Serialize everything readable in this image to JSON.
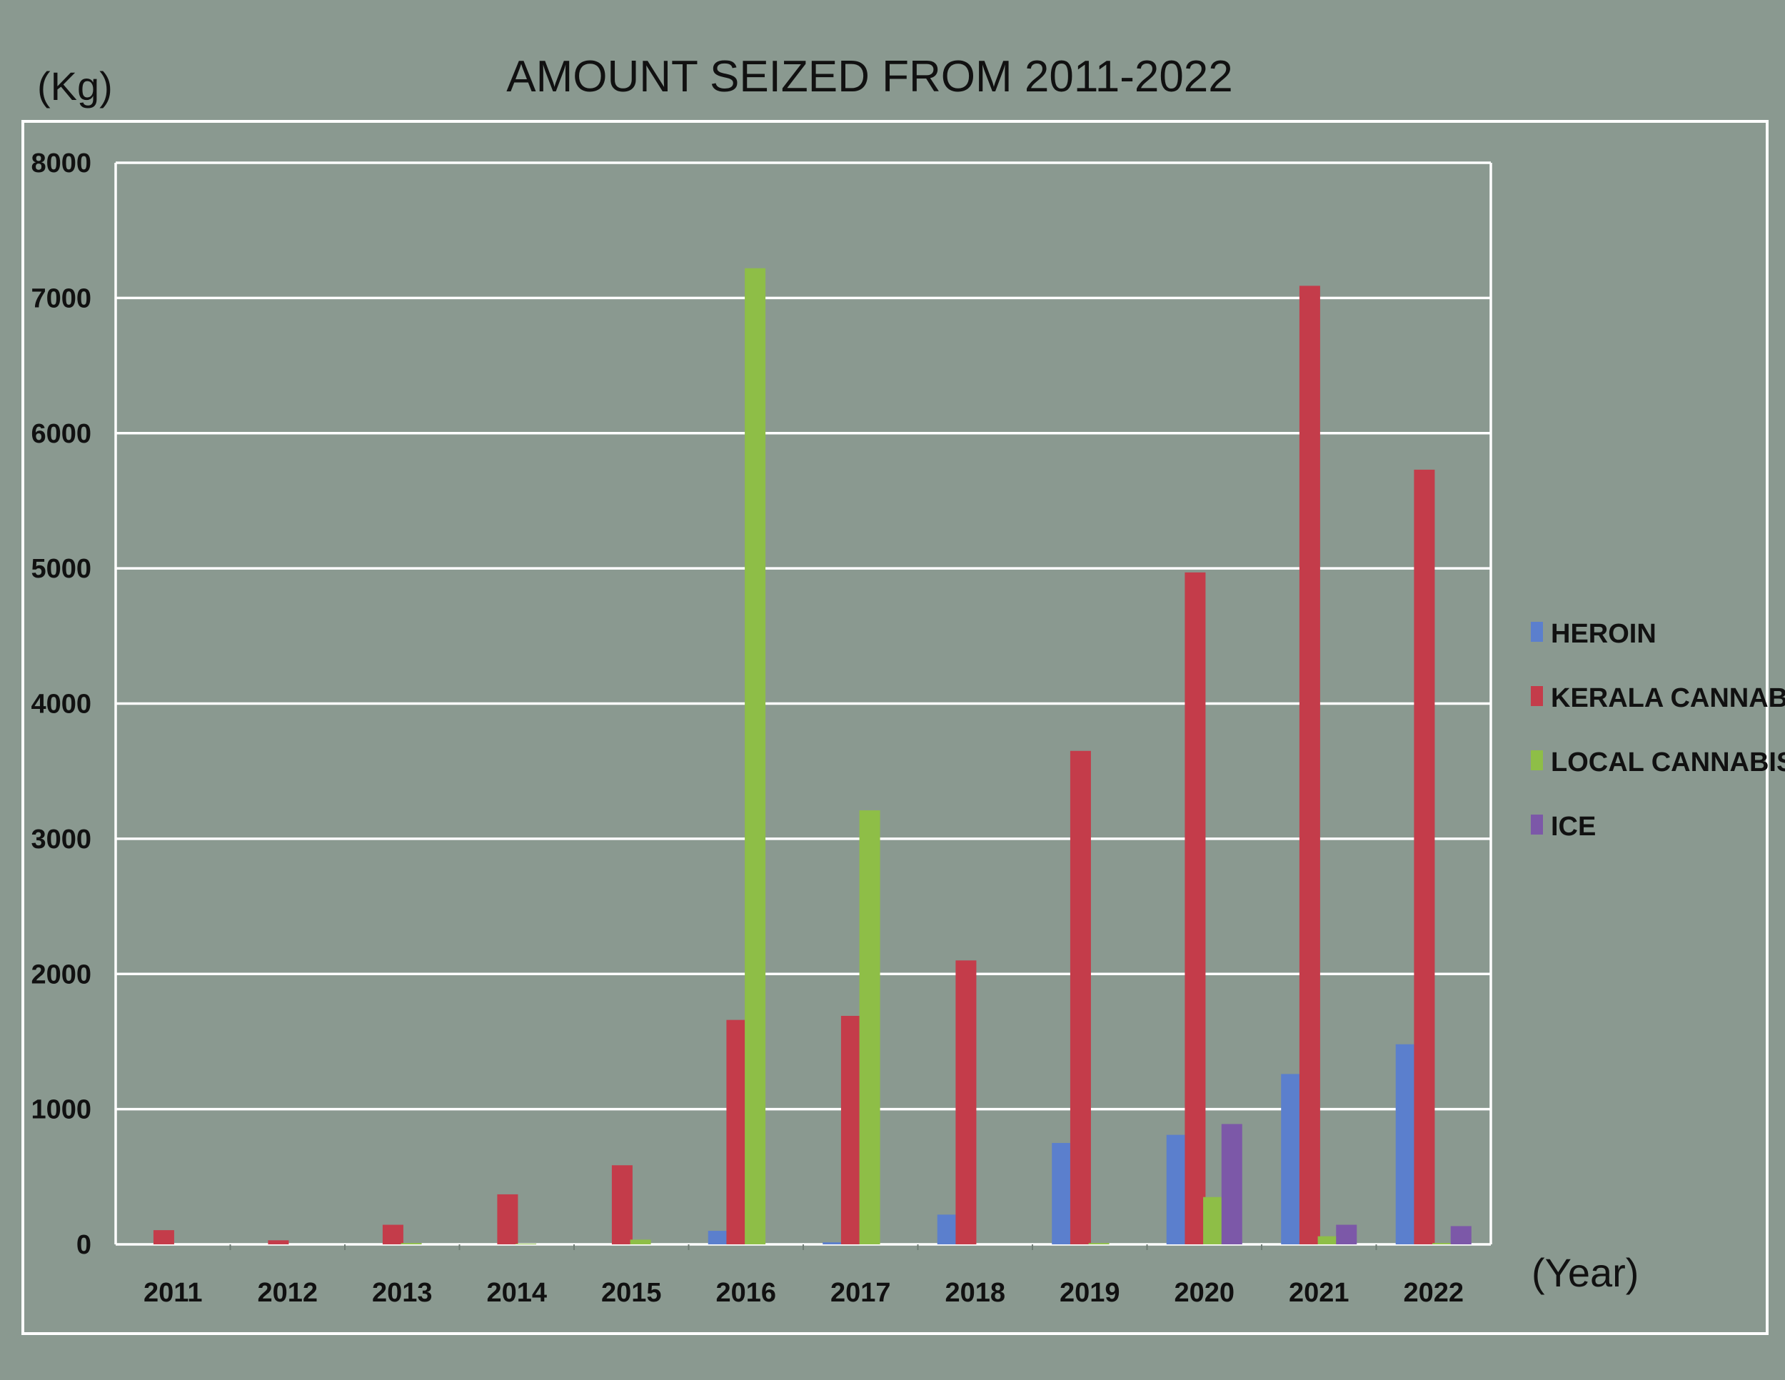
{
  "chart_data": {
    "type": "bar",
    "title": "AMOUNT SEIZED FROM 2011-2022",
    "ylabel": "(Kg)",
    "xlabel": "(Year)",
    "ylim": [
      0,
      8000
    ],
    "yticks": [
      0,
      1000,
      2000,
      3000,
      4000,
      5000,
      6000,
      7000,
      8000
    ],
    "grid": true,
    "legend_position": "right",
    "categories": [
      "2011",
      "2012",
      "2013",
      "2014",
      "2015",
      "2016",
      "2017",
      "2018",
      "2019",
      "2020",
      "2021",
      "2022"
    ],
    "series": [
      {
        "name": "HEROIN",
        "color": "#5b7fcd",
        "values": [
          0,
          0,
          0,
          0,
          0,
          100,
          15,
          220,
          750,
          810,
          1260,
          1480
        ]
      },
      {
        "name": "KERALA CANNABIS",
        "color": "#c43c4a",
        "values": [
          105,
          30,
          145,
          370,
          585,
          1660,
          1690,
          2100,
          3650,
          4970,
          7090,
          5730
        ]
      },
      {
        "name": "LOCAL CANNABIS",
        "color": "#8ebe47",
        "values": [
          0,
          0,
          10,
          5,
          35,
          7220,
          3210,
          0,
          10,
          350,
          60,
          10
        ]
      },
      {
        "name": "ICE",
        "color": "#7c58a8",
        "values": [
          0,
          0,
          0,
          0,
          0,
          0,
          0,
          0,
          0,
          890,
          145,
          135
        ]
      }
    ]
  }
}
